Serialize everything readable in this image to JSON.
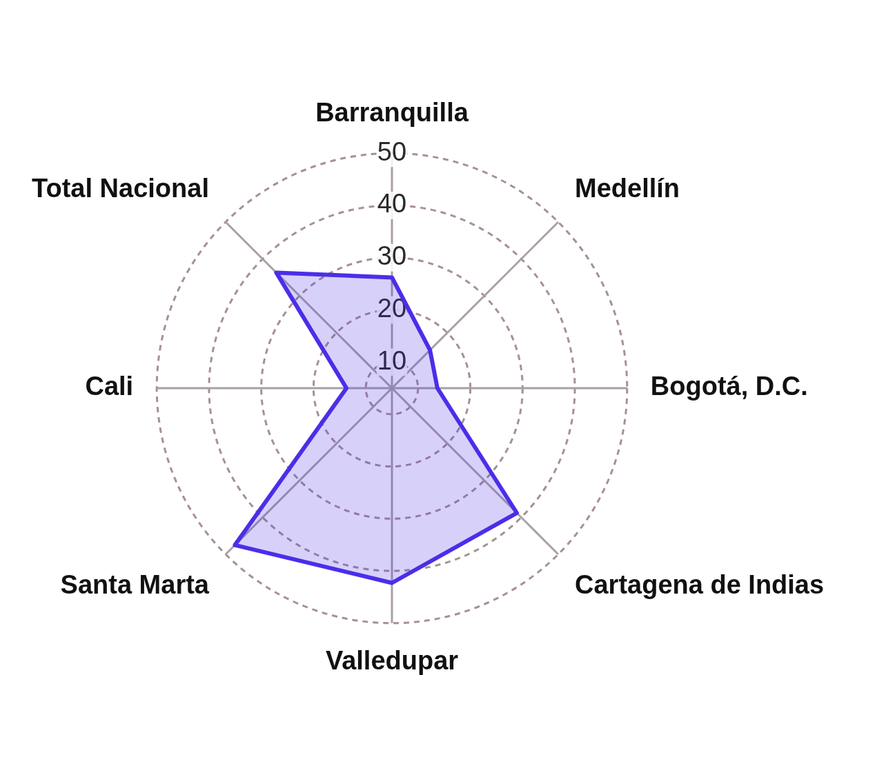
{
  "chart_data": {
    "type": "radar",
    "categories": [
      "Barranquilla",
      "Medellín",
      "Bogotá, D.C.",
      "Cartagena de Indias",
      "Valledupar",
      "Santa Marta",
      "Cali",
      "Total Nacional"
    ],
    "series": [
      {
        "color": "#4b2ee8",
        "values": [
          26.2,
          15.3,
          13.7,
          38.8,
          42.3,
          47.5,
          13.7,
          36.3
        ]
      }
    ],
    "ylim": [
      5,
      50
    ],
    "yticks": [
      10,
      20,
      30,
      40,
      50
    ],
    "grid": true,
    "legend": false,
    "marker": "none",
    "line_style": "solid"
  }
}
